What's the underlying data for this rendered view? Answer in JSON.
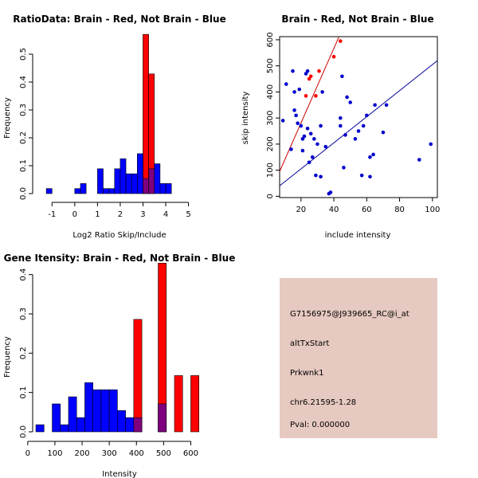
{
  "chart_data": [
    {
      "type": "bar",
      "title": "RatioData: Brain - Red, Not Brain - Blue",
      "xlabel": "Log2 Ratio Skip/Include",
      "ylabel": "Frequency",
      "xlim": [
        -1.5,
        5.4
      ],
      "ylim": [
        0,
        0.6
      ],
      "xticks": [
        "-1",
        "0",
        "1",
        "2",
        "3",
        "4",
        "5"
      ],
      "yticks": [
        "0.0",
        "0.1",
        "0.2",
        "0.3",
        "0.4",
        "0.5"
      ],
      "bin_width": 0.25,
      "colors": {
        "brain": "#ff0000",
        "not_brain": "#0000ff",
        "overlap": "#7f007f"
      },
      "series": [
        {
          "name": "Not Brain",
          "bins": [
            {
              "x": -1.25,
              "y": 0.018
            },
            {
              "x": 0.0,
              "y": 0.018
            },
            {
              "x": 0.25,
              "y": 0.036
            },
            {
              "x": 1.0,
              "y": 0.089
            },
            {
              "x": 1.25,
              "y": 0.018
            },
            {
              "x": 1.5,
              "y": 0.018
            },
            {
              "x": 1.75,
              "y": 0.089
            },
            {
              "x": 2.0,
              "y": 0.125
            },
            {
              "x": 2.25,
              "y": 0.071
            },
            {
              "x": 2.5,
              "y": 0.071
            },
            {
              "x": 2.75,
              "y": 0.143
            },
            {
              "x": 3.0,
              "y": 0.054
            },
            {
              "x": 3.25,
              "y": 0.089
            },
            {
              "x": 3.5,
              "y": 0.107
            },
            {
              "x": 3.75,
              "y": 0.036
            },
            {
              "x": 4.0,
              "y": 0.036
            }
          ]
        },
        {
          "name": "Brain",
          "bins": [
            {
              "x": 3.0,
              "y": 0.571
            },
            {
              "x": 3.25,
              "y": 0.429
            }
          ]
        }
      ]
    },
    {
      "type": "scatter",
      "title": "Brain - Red, Not Brain - Blue",
      "xlabel": "include intensity",
      "ylabel": "skip intensity",
      "xlim": [
        7,
        103
      ],
      "ylim": [
        -5,
        612
      ],
      "xticks": [
        "20",
        "40",
        "60",
        "80",
        "100"
      ],
      "yticks": [
        "0",
        "100",
        "200",
        "300",
        "400",
        "500",
        "600"
      ],
      "series": [
        {
          "name": "Not Brain",
          "color": "#0000cc",
          "points": [
            [
              9,
              290
            ],
            [
              11,
              430
            ],
            [
              14,
              180
            ],
            [
              15,
              480
            ],
            [
              16,
              400
            ],
            [
              16,
              330
            ],
            [
              17,
              310
            ],
            [
              18,
              280
            ],
            [
              19,
              410
            ],
            [
              20,
              270
            ],
            [
              21,
              220
            ],
            [
              22,
              230
            ],
            [
              21,
              175
            ],
            [
              23,
              470
            ],
            [
              24,
              480
            ],
            [
              24,
              260
            ],
            [
              25,
              130
            ],
            [
              26,
              240
            ],
            [
              27,
              150
            ],
            [
              28,
              220
            ],
            [
              29,
              80
            ],
            [
              30,
              200
            ],
            [
              32,
              270
            ],
            [
              32,
              75
            ],
            [
              33,
              400
            ],
            [
              35,
              190
            ],
            [
              38,
              15
            ],
            [
              44,
              300
            ],
            [
              44,
              270
            ],
            [
              45,
              460
            ],
            [
              46,
              110
            ],
            [
              47,
              235
            ],
            [
              48,
              380
            ],
            [
              50,
              360
            ],
            [
              53,
              220
            ],
            [
              55,
              250
            ],
            [
              57,
              80
            ],
            [
              58,
              270
            ],
            [
              60,
              310
            ],
            [
              62,
              150
            ],
            [
              62,
              75
            ],
            [
              64,
              160
            ],
            [
              65,
              350
            ],
            [
              70,
              245
            ],
            [
              72,
              350
            ],
            [
              92,
              140
            ],
            [
              99,
              200
            ],
            [
              37,
              10
            ]
          ]
        },
        {
          "name": "Brain",
          "color": "#ff0000",
          "points": [
            [
              23,
              385
            ],
            [
              25,
              450
            ],
            [
              26,
              460
            ],
            [
              29,
              385
            ],
            [
              31,
              480
            ],
            [
              40,
              535
            ],
            [
              44,
              595
            ]
          ]
        }
      ],
      "fit_lines": [
        {
          "name": "Brain fit",
          "color": "#cc0000",
          "from": [
            7,
            95
          ],
          "to": [
            43,
            610
          ]
        },
        {
          "name": "Not Brain fit",
          "color": "#000099",
          "from": [
            7,
            40
          ],
          "to": [
            103,
            520
          ]
        }
      ]
    },
    {
      "type": "bar",
      "title": "Gene Itensity: Brain - Red, Not Brain - Blue",
      "xlabel": "Intensity",
      "ylabel": "Frequency",
      "xlim": [
        -20,
        625
      ],
      "ylim": [
        0,
        0.45
      ],
      "xticks": [
        "0",
        "100",
        "200",
        "300",
        "400",
        "500",
        "600"
      ],
      "yticks": [
        "0.0",
        "0.1",
        "0.2",
        "0.3",
        "0.4"
      ],
      "bin_width": 30,
      "colors": {
        "brain": "#ff0000",
        "not_brain": "#0000ff",
        "overlap": "#7f007f"
      },
      "series": [
        {
          "name": "Not Brain",
          "bins": [
            {
              "x": 30,
              "y": 0.018
            },
            {
              "x": 90,
              "y": 0.071
            },
            {
              "x": 120,
              "y": 0.018
            },
            {
              "x": 150,
              "y": 0.089
            },
            {
              "x": 180,
              "y": 0.036
            },
            {
              "x": 210,
              "y": 0.125
            },
            {
              "x": 240,
              "y": 0.107
            },
            {
              "x": 270,
              "y": 0.107
            },
            {
              "x": 300,
              "y": 0.107
            },
            {
              "x": 330,
              "y": 0.054
            },
            {
              "x": 360,
              "y": 0.036
            },
            {
              "x": 390,
              "y": 0.036
            },
            {
              "x": 480,
              "y": 0.071
            }
          ]
        },
        {
          "name": "Brain",
          "bins": [
            {
              "x": 390,
              "y": 0.286
            },
            {
              "x": 480,
              "y": 0.429
            },
            {
              "x": 540,
              "y": 0.143
            },
            {
              "x": 600,
              "y": 0.143
            }
          ]
        }
      ]
    }
  ],
  "info_panel": {
    "background": "#e6c9c0",
    "probe_id": "G7156975@J939665_RC@i_at",
    "event_type": "altTxStart",
    "gene": "Prkwnk1",
    "location": "chr6.21595-1.28",
    "pval": "Pval: 0.000000",
    "pval_color": "#cc0000"
  }
}
